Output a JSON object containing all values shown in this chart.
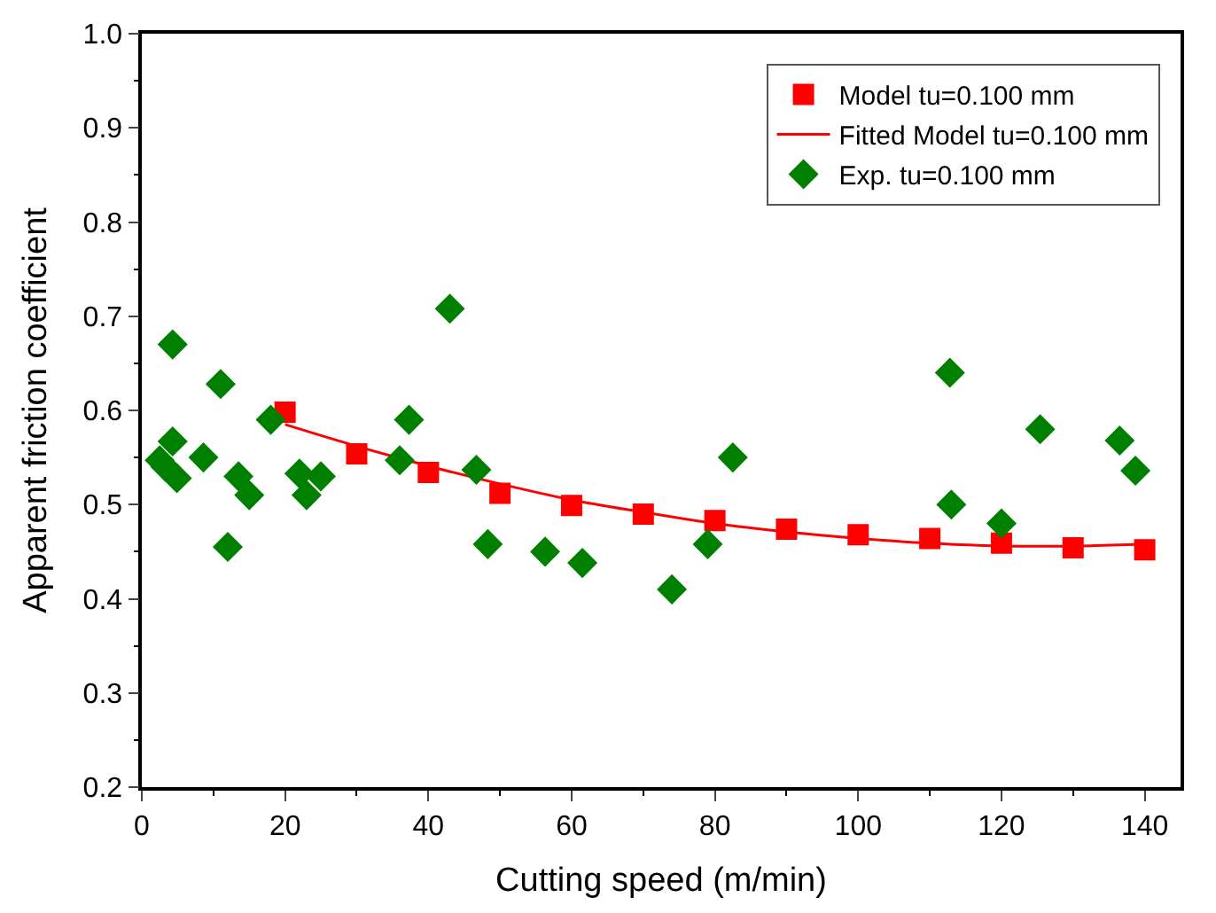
{
  "chart_data": {
    "type": "scatter",
    "xlabel": "Cutting speed (m/min)",
    "ylabel": "Apparent friction coefficient",
    "xlim": [
      0,
      145
    ],
    "xticks": [
      0,
      20,
      40,
      60,
      80,
      100,
      120,
      140
    ],
    "ylim": [
      0.2,
      1.0
    ],
    "yticks": [
      0.2,
      0.3,
      0.4,
      0.5,
      0.6,
      0.7,
      0.8,
      0.9,
      {
        "value": 1.0,
        "label": "1.0"
      }
    ],
    "legend": "top right",
    "series": [
      {
        "name": "Model tu=0.100 mm",
        "marker": "square",
        "color": "#ff0000",
        "x": [
          20,
          30,
          40,
          50,
          60,
          70,
          80,
          90,
          100,
          110,
          120,
          130,
          140
        ],
        "values": [
          0.598,
          0.554,
          0.534,
          0.512,
          0.499,
          0.49,
          0.483,
          0.474,
          0.468,
          0.464,
          0.459,
          0.454,
          0.452
        ]
      },
      {
        "name": "Fitted Model tu=0.100 mm",
        "type": "line",
        "marker": "none",
        "line_style": "solid",
        "color": "#ff0000",
        "x": [
          20,
          30,
          40,
          50,
          60,
          70,
          80,
          90,
          100,
          110,
          120,
          130,
          140
        ],
        "values": [
          0.585,
          0.562,
          0.541,
          0.522,
          0.505,
          0.492,
          0.48,
          0.471,
          0.464,
          0.459,
          0.456,
          0.456,
          0.458
        ]
      },
      {
        "name": "Exp. tu=0.100 mm",
        "marker": "diamond",
        "color": "#008000",
        "x": [
          2.5,
          3.3,
          4.3,
          4.3,
          4.9,
          8.6,
          11,
          12,
          13.5,
          15,
          18,
          22,
          23,
          25,
          36,
          37.3,
          43,
          46.7,
          48.3,
          56.3,
          61.5,
          74,
          79,
          82.5,
          112.8,
          113,
          120,
          125.4,
          136.5,
          138.7
        ],
        "values": [
          0.547,
          0.54,
          0.67,
          0.567,
          0.528,
          0.55,
          0.628,
          0.455,
          0.53,
          0.51,
          0.59,
          0.533,
          0.51,
          0.53,
          0.547,
          0.59,
          0.708,
          0.537,
          0.458,
          0.45,
          0.438,
          0.41,
          0.458,
          0.55,
          0.64,
          0.5,
          0.48,
          0.58,
          0.568,
          0.536
        ]
      }
    ]
  }
}
